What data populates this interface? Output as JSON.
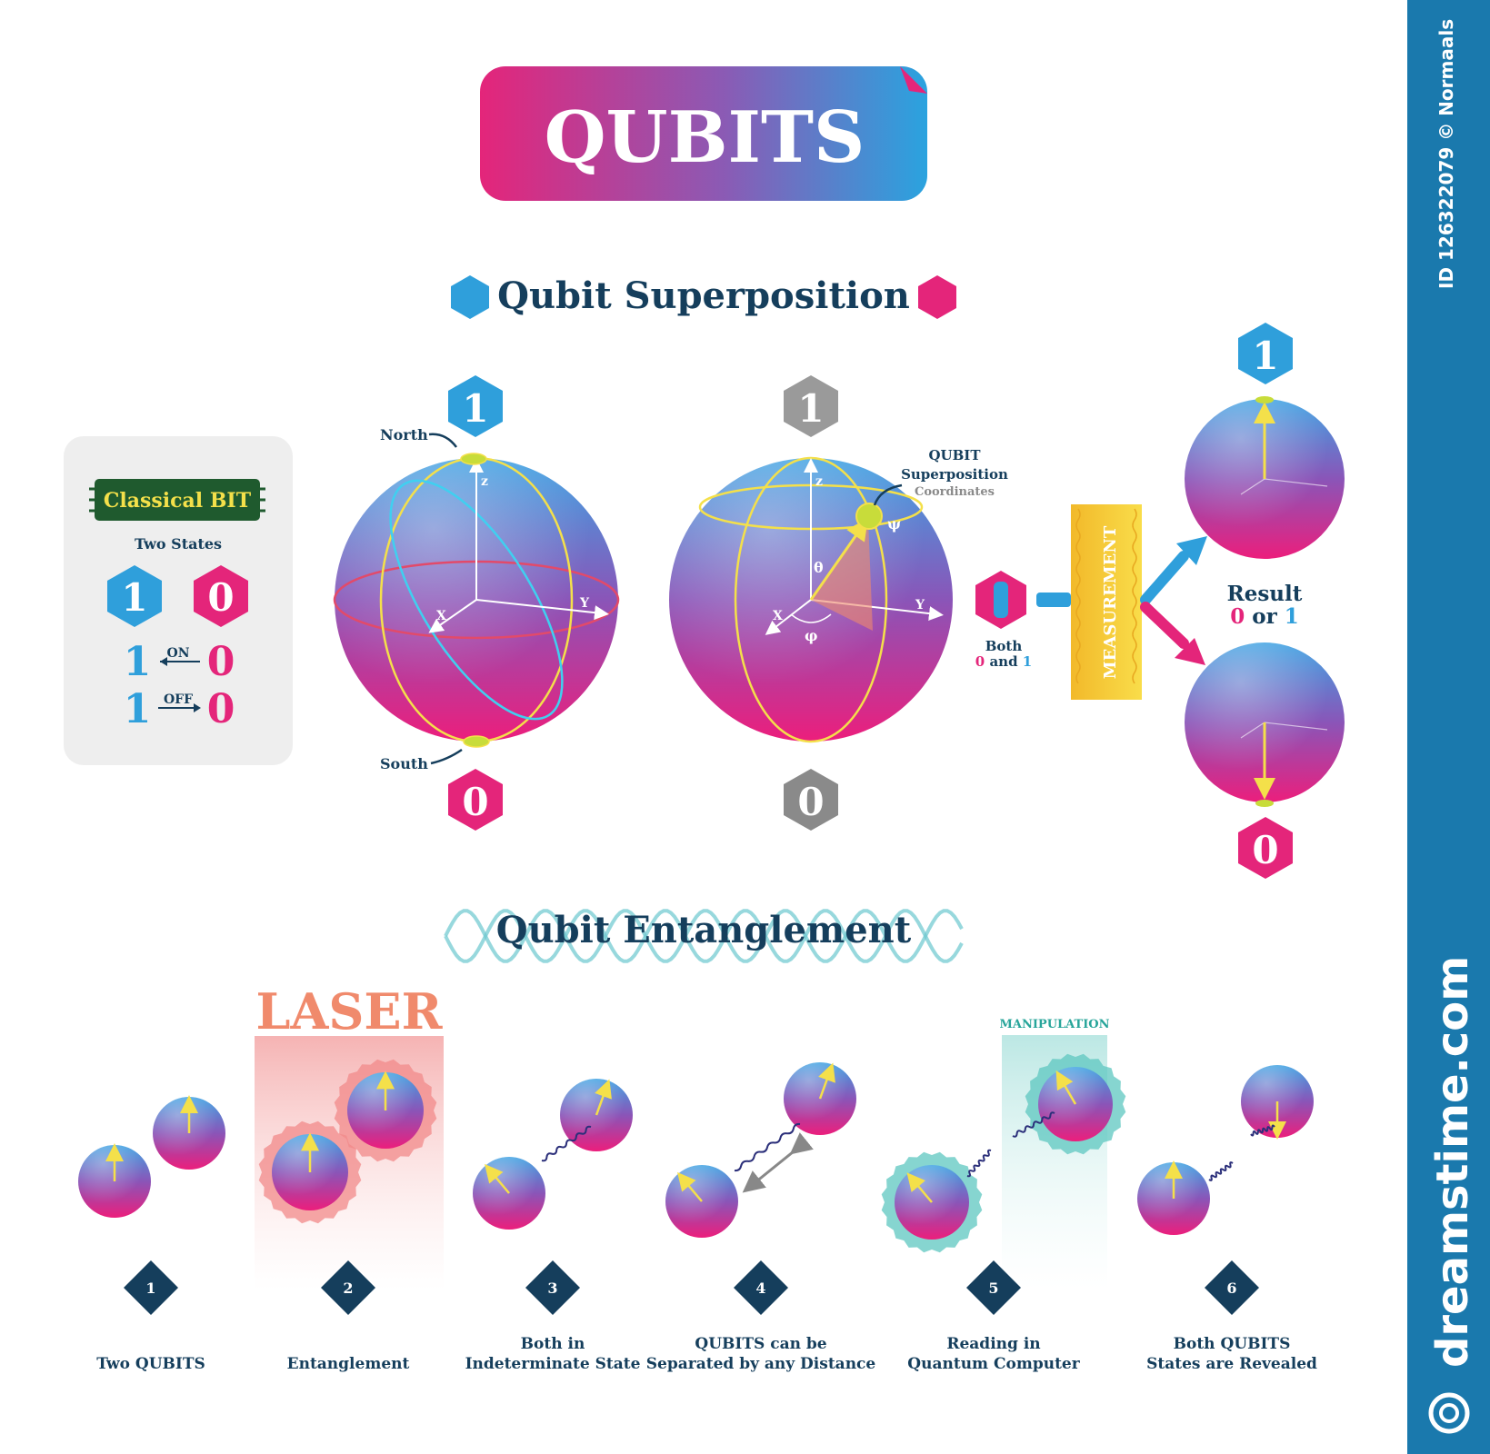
{
  "title": "QUBITS",
  "superposition": {
    "heading": "Qubit Superposition",
    "classical": {
      "title": "Classical BIT",
      "subtitle": "Two States",
      "state_one": "1",
      "state_zero": "0",
      "on_label": "ON",
      "off_label": "OFF"
    },
    "bloch": {
      "top_state": "1",
      "bottom_state": "0",
      "north_label": "North",
      "south_label": "South",
      "axis_z": "z",
      "axis_x": "X",
      "axis_y": "Y"
    },
    "coords": {
      "top_state": "1",
      "bottom_state": "0",
      "label_line1": "QUBIT",
      "label_line2": "Superposition",
      "label_line3": "Coordinates",
      "psi": "ψ",
      "theta": "θ",
      "phi": "φ",
      "axis_z": "z",
      "axis_x": "X",
      "axis_y": "Y"
    },
    "measurement": {
      "both_line1": "Both",
      "both_zero": "0",
      "both_and": "and",
      "both_one": "1",
      "box_label": "MEASUREMENT",
      "result_title": "Result",
      "result_zero": "0",
      "result_or": "or",
      "result_one": "1",
      "top_state": "1",
      "bottom_state": "0"
    }
  },
  "entanglement": {
    "heading": "Qubit Entanglement",
    "laser_label": "LASER",
    "manipulation_label": "MANIPULATION",
    "steps": [
      {
        "num": "1",
        "line1": "",
        "line2": "Two QUBITS"
      },
      {
        "num": "2",
        "line1": "",
        "line2": "Entanglement"
      },
      {
        "num": "3",
        "line1": "Both in",
        "line2": "Indeterminate State"
      },
      {
        "num": "4",
        "line1": "QUBITS can be",
        "line2": "Separated by any Distance"
      },
      {
        "num": "5",
        "line1": "Reading in",
        "line2": "Quantum Computer"
      },
      {
        "num": "6",
        "line1": "Both QUBITS",
        "line2": "States are Revealed"
      }
    ]
  },
  "sidebar": {
    "image_id": "ID 126322079 © Normaals",
    "brand": "dreamstime.com"
  },
  "colors": {
    "navy": "#153e5c",
    "pink": "#e4257a",
    "blue": "#2f9fdb",
    "sidebar": "#1a79ad",
    "yellow": "#f6d133",
    "laser": "#f08a6c"
  }
}
